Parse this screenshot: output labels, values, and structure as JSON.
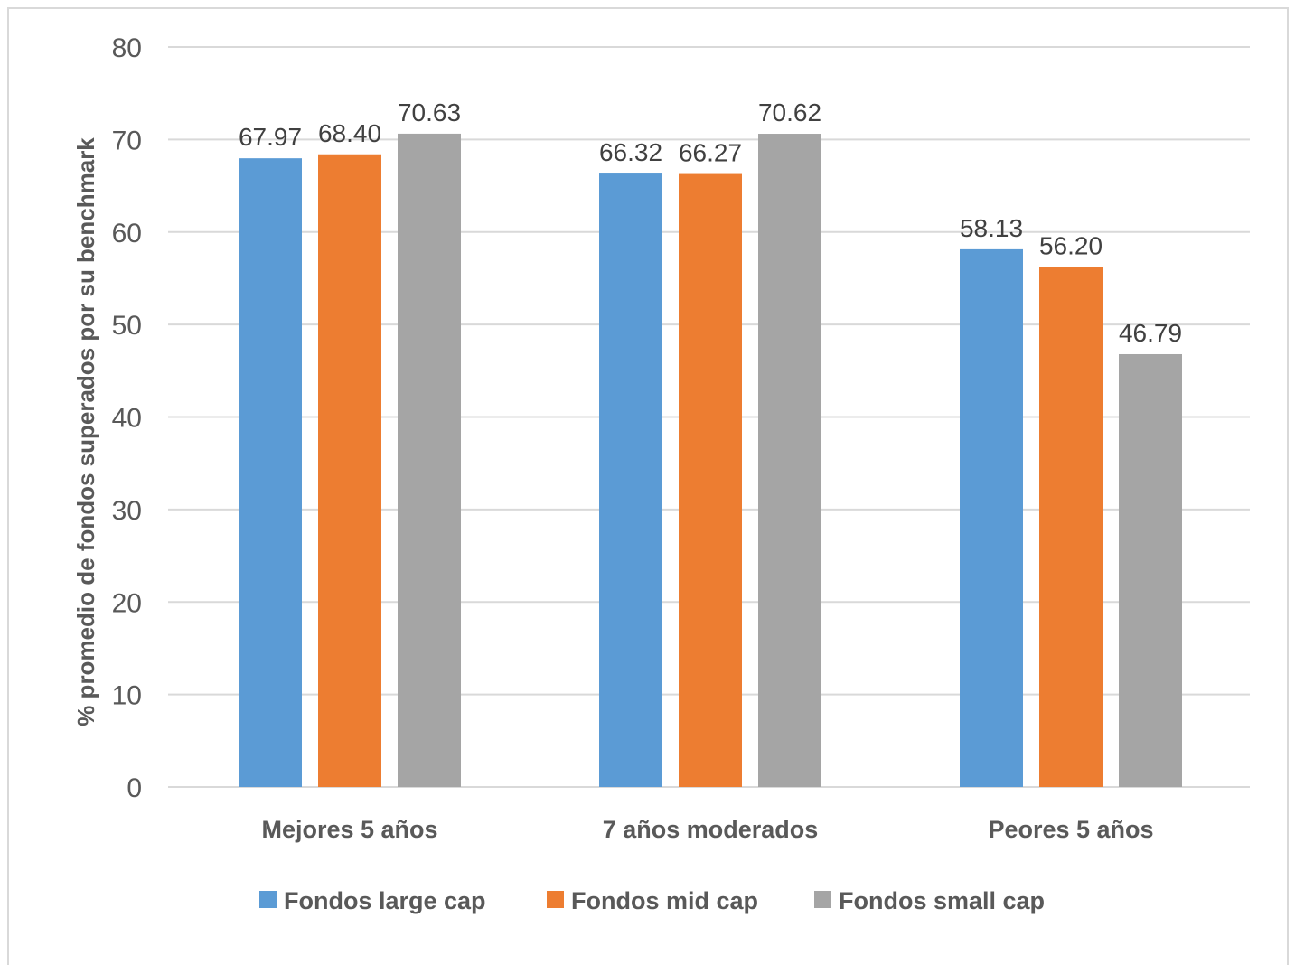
{
  "chart_data": {
    "type": "bar",
    "categories": [
      "Mejores 5 años",
      "7 años moderados",
      "Peores 5 años"
    ],
    "series": [
      {
        "name": "Fondos large cap",
        "values": [
          67.97,
          66.32,
          58.13
        ],
        "labels": [
          "67.97",
          "66.32",
          "58.13"
        ],
        "color": "#5b9bd5"
      },
      {
        "name": "Fondos mid cap",
        "values": [
          68.4,
          66.27,
          56.2
        ],
        "labels": [
          "68.40",
          "66.27",
          "56.20"
        ],
        "color": "#ed7d31"
      },
      {
        "name": "Fondos small cap",
        "values": [
          70.63,
          70.62,
          46.79
        ],
        "labels": [
          "70.63",
          "70.62",
          "46.79"
        ],
        "color": "#a5a5a5"
      }
    ],
    "ylabel": "% promedio de fondos superados por su benchmark",
    "xlabel": "",
    "ylim": [
      0,
      80
    ],
    "yticks": [
      0,
      10,
      20,
      30,
      40,
      50,
      60,
      70,
      80
    ],
    "grid": true,
    "legend": "bottom"
  }
}
